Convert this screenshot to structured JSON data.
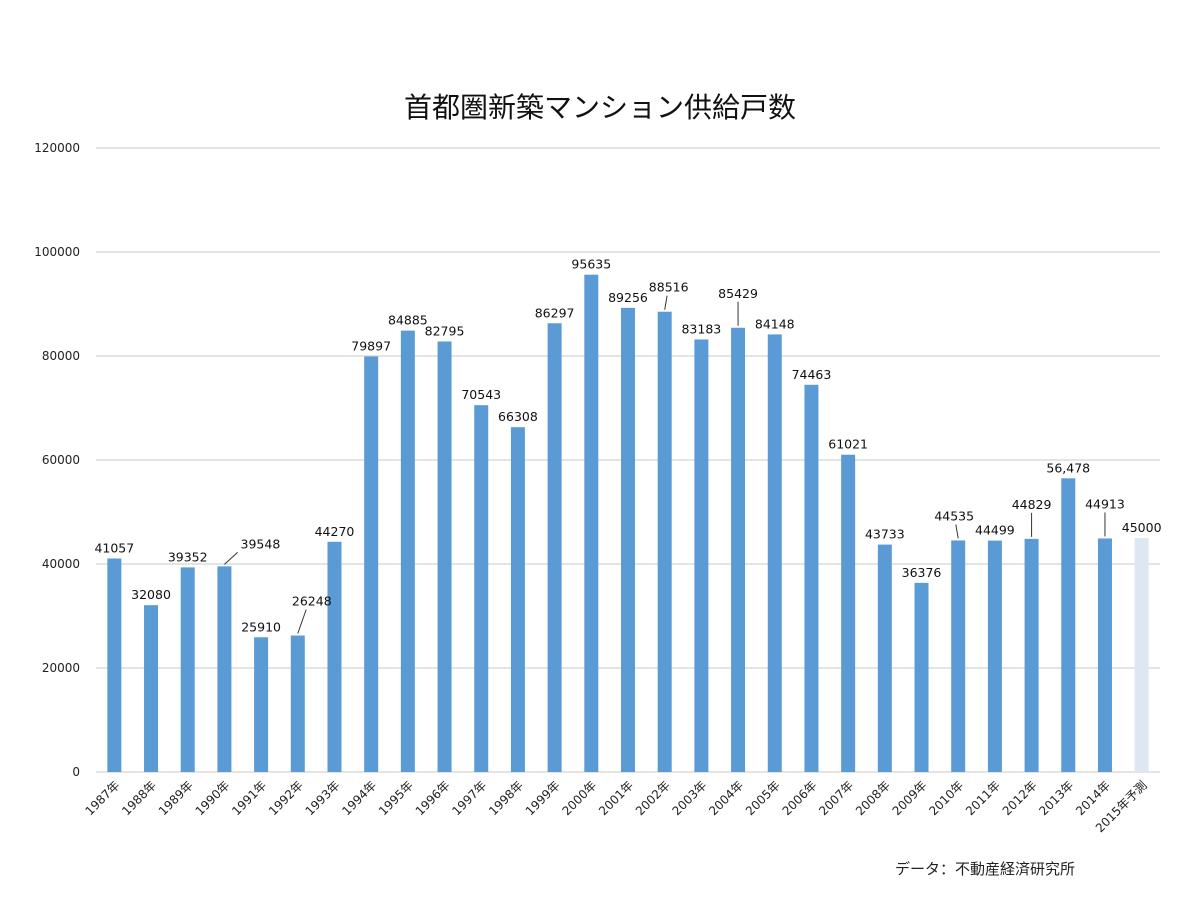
{
  "chart_data": {
    "type": "bar",
    "title": "首都圏新築マンション供給戸数",
    "source": "データ：不動産経済研究所",
    "xlabel": "",
    "ylabel": "",
    "ylim": [
      0,
      120000
    ],
    "yticks": [
      "0",
      "20000",
      "40000",
      "60000",
      "80000",
      "100000",
      "120000"
    ],
    "grid": true,
    "legend": "none",
    "categories": [
      "1987年",
      "1988年",
      "1989年",
      "1990年",
      "1991年",
      "1992年",
      "1993年",
      "1994年",
      "1995年",
      "1996年",
      "1997年",
      "1998年",
      "1999年",
      "2000年",
      "2001年",
      "2002年",
      "2003年",
      "2004年",
      "2005年",
      "2006年",
      "2007年",
      "2008年",
      "2009年",
      "2010年",
      "2011年",
      "2012年",
      "2013年",
      "2014年",
      "2015年予測"
    ],
    "values": [
      41057,
      32080,
      39352,
      39548,
      25910,
      26248,
      44270,
      79897,
      84885,
      82795,
      70543,
      66308,
      86297,
      95635,
      89256,
      88516,
      83183,
      85429,
      84148,
      74463,
      61021,
      43733,
      36376,
      44535,
      44499,
      44829,
      56478,
      44913,
      45000
    ],
    "labels": [
      "41057",
      "32080",
      "39352",
      "39548",
      "25910",
      "26248",
      "44270",
      "79897",
      "84885",
      "82795",
      "70543",
      "66308",
      "86297",
      "95635",
      "89256",
      "88516",
      "83183",
      "85429",
      "84148",
      "74463",
      "61021",
      "43733",
      "36376",
      "44535",
      "44499",
      "44829",
      "56,478",
      "44913",
      "45000"
    ],
    "colors": {
      "bar": "#5b9bd5",
      "forecast": "#dce7f2",
      "forecast_label": "#9a9a9a",
      "grid": "#c8c8c8"
    }
  }
}
